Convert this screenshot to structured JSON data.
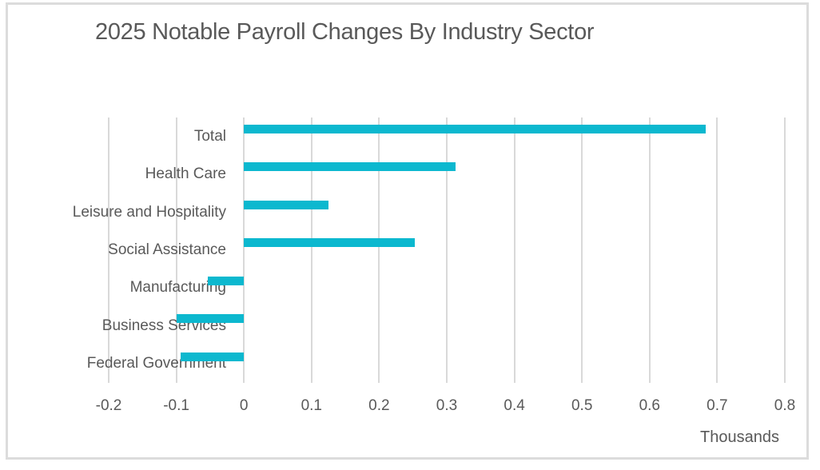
{
  "chart_data": {
    "type": "bar",
    "orientation": "horizontal",
    "title": "2025 Notable Payroll Changes By Industry Sector",
    "unit_label": "Thousands",
    "categories": [
      "Total",
      "Health Care",
      "Leisure and Hospitality",
      "Social Assistance",
      "Manufacturing",
      "Business Services",
      "Federal Government"
    ],
    "values": [
      0.683,
      0.313,
      0.125,
      0.253,
      -0.053,
      -0.099,
      -0.094
    ],
    "xlim": [
      -0.2,
      0.8
    ],
    "tick_step": 0.1,
    "tick_labels": [
      "-0.2",
      "-0.1",
      "0",
      "0.1",
      "0.2",
      "0.3",
      "0.4",
      "0.5",
      "0.6",
      "0.7",
      "0.8"
    ],
    "grid": true,
    "legend": "none",
    "colors": {
      "bar": "#0cb8cf",
      "gridline": "#d9d9d9",
      "text": "#595959",
      "frame_border": "#dcdcdc",
      "background": "#ffffff"
    }
  }
}
